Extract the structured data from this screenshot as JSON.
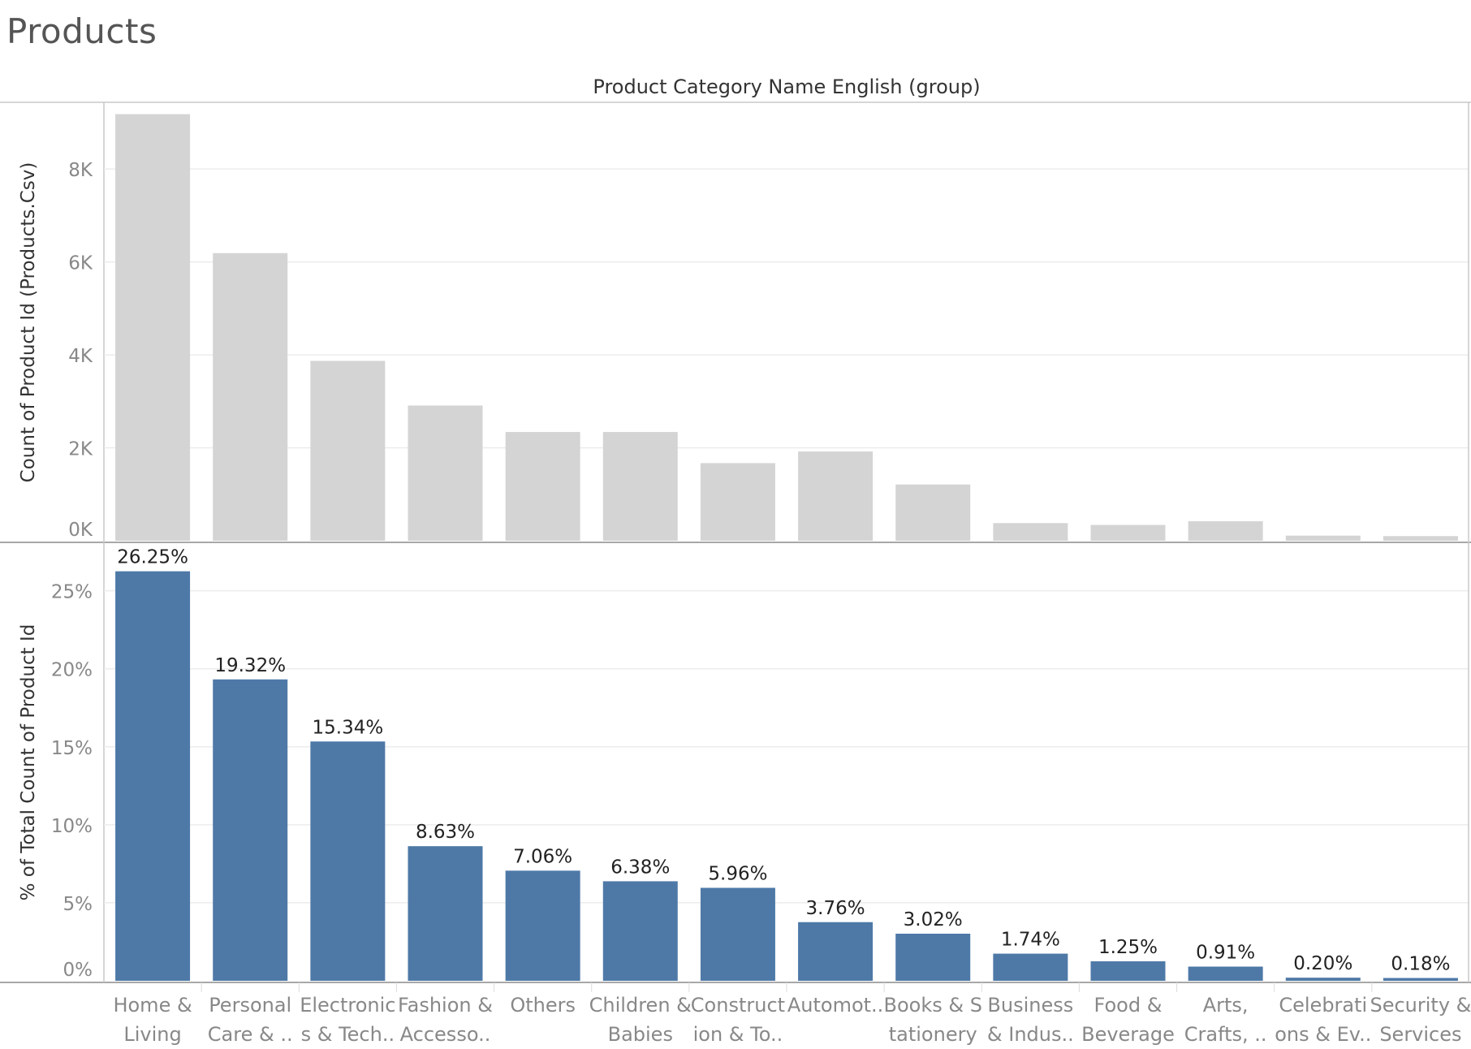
{
  "page": {
    "title": "Products"
  },
  "colors": {
    "top_bar": "#d4d4d4",
    "bottom_bar": "#4e79a7",
    "grid": "#ececec",
    "border": "#c8c8c8",
    "axis_text": "#888888",
    "label_text": "#333333",
    "data_label": "#222222"
  },
  "chart_data": {
    "type": "bar",
    "column_header": "Product Category Name English (group)",
    "categories": [
      [
        "Home &",
        "Living"
      ],
      [
        "Personal",
        "Care & .."
      ],
      [
        "Electronic",
        "s & Tech.."
      ],
      [
        "Fashion &",
        "Accesso.."
      ],
      [
        "Others",
        ""
      ],
      [
        "Children &",
        "Babies"
      ],
      [
        "Construct",
        "ion & To.."
      ],
      [
        "Automot..",
        ""
      ],
      [
        "Books & S",
        "tationery"
      ],
      [
        "Business",
        "& Indus.."
      ],
      [
        "Food &",
        "Beverage"
      ],
      [
        "Arts,",
        "Crafts, .."
      ],
      [
        "Celebrati",
        "ons & Ev.."
      ],
      [
        "Security &",
        "Services"
      ]
    ],
    "panels": [
      {
        "ylabel": "Count of Product Id (Products.Csv)",
        "ylim": [
          0,
          9400
        ],
        "ticks": [
          {
            "value": 0,
            "label": "0K"
          },
          {
            "value": 2000,
            "label": "2K"
          },
          {
            "value": 4000,
            "label": "4K"
          },
          {
            "value": 6000,
            "label": "6K"
          },
          {
            "value": 8000,
            "label": "8K"
          }
        ],
        "values": [
          9180,
          6190,
          3870,
          2910,
          2340,
          2340,
          1670,
          1920,
          1210,
          380,
          340,
          420,
          110,
          100
        ],
        "data_labels": [],
        "grid": true
      },
      {
        "ylabel": "% of Total Count of Product Id",
        "ylim": [
          0,
          28
        ],
        "ticks": [
          {
            "value": 0,
            "label": "0%"
          },
          {
            "value": 5,
            "label": "5%"
          },
          {
            "value": 10,
            "label": "10%"
          },
          {
            "value": 15,
            "label": "15%"
          },
          {
            "value": 20,
            "label": "20%"
          },
          {
            "value": 25,
            "label": "25%"
          }
        ],
        "values": [
          26.25,
          19.32,
          15.34,
          8.63,
          7.06,
          6.38,
          5.96,
          3.76,
          3.02,
          1.74,
          1.25,
          0.91,
          0.2,
          0.18
        ],
        "data_labels": [
          "26.25%",
          "19.32%",
          "15.34%",
          "8.63%",
          "7.06%",
          "6.38%",
          "5.96%",
          "3.76%",
          "3.02%",
          "1.74%",
          "1.25%",
          "0.91%",
          "0.20%",
          "0.18%"
        ],
        "grid": true
      }
    ]
  }
}
